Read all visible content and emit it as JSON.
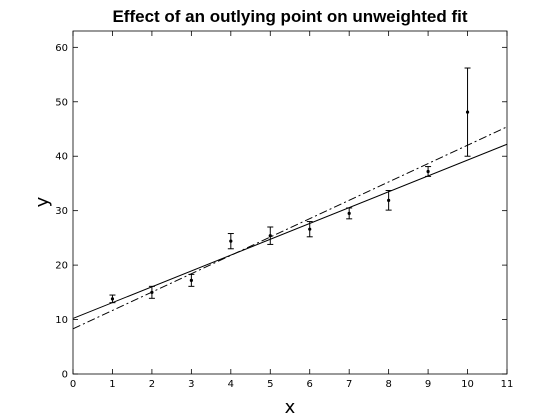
{
  "chart_data": {
    "type": "scatter",
    "title": "Effect of an outlying point on unweighted fit",
    "xlabel": "x",
    "ylabel": "y",
    "xlim": [
      0,
      11
    ],
    "ylim": [
      0,
      63
    ],
    "xticks": [
      "0",
      "1",
      "2",
      "3",
      "4",
      "5",
      "6",
      "7",
      "8",
      "9",
      "10",
      "11"
    ],
    "yticks": [
      "0",
      "10",
      "20",
      "30",
      "40",
      "50",
      "60"
    ],
    "grid": false,
    "legend": "none",
    "colors": {
      "axes": "#000000",
      "background": "#ffffff",
      "data": "#000000"
    },
    "points": [
      {
        "x": 1,
        "y": 13.8,
        "err": 0.7
      },
      {
        "x": 2,
        "y": 15.0,
        "err": 1.1
      },
      {
        "x": 3,
        "y": 17.2,
        "err": 1.1
      },
      {
        "x": 4,
        "y": 24.4,
        "err": 1.4
      },
      {
        "x": 5,
        "y": 25.4,
        "err": 1.6
      },
      {
        "x": 6,
        "y": 26.6,
        "err": 1.4
      },
      {
        "x": 7,
        "y": 29.5,
        "err": 1.0
      },
      {
        "x": 8,
        "y": 31.9,
        "err": 1.8
      },
      {
        "x": 9,
        "y": 37.2,
        "err": 0.9
      },
      {
        "x": 10,
        "y": 48.1,
        "err": 8.1
      }
    ],
    "lines": [
      {
        "style": "solid",
        "x": [
          0,
          11
        ],
        "y": [
          10.2,
          42.2
        ]
      },
      {
        "style": "dash-dot",
        "x": [
          0,
          11
        ],
        "y": [
          8.3,
          45.4
        ]
      }
    ]
  }
}
